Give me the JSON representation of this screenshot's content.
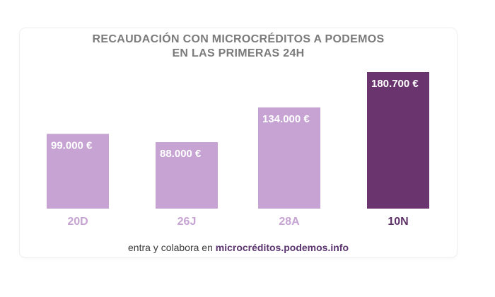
{
  "chart_data": {
    "type": "bar",
    "title_lines": [
      "RECAUDACIÓN CON MICROCRÉDITOS A PODEMOS",
      "EN LAS PRIMERAS 24H"
    ],
    "categories": [
      "20D",
      "26J",
      "28A",
      "10N"
    ],
    "values": [
      99000,
      88000,
      134000,
      180700
    ],
    "value_labels": [
      "99.000 €",
      "88.000 €",
      "134.000 €",
      "180.700 €"
    ],
    "unit": "€",
    "ylim": [
      0,
      180700
    ],
    "grid": false,
    "legend": "none",
    "colors": {
      "bar_default": "#c6a3d3",
      "bar_highlight": "#6a356f",
      "label_default": "#c6a3d3",
      "label_highlight": "#5e3368",
      "value_text": "#ffffff"
    },
    "highlight_index": 3
  },
  "footer": {
    "text": "entra y colabora en ",
    "link": "microcréditos.podemos.info"
  }
}
